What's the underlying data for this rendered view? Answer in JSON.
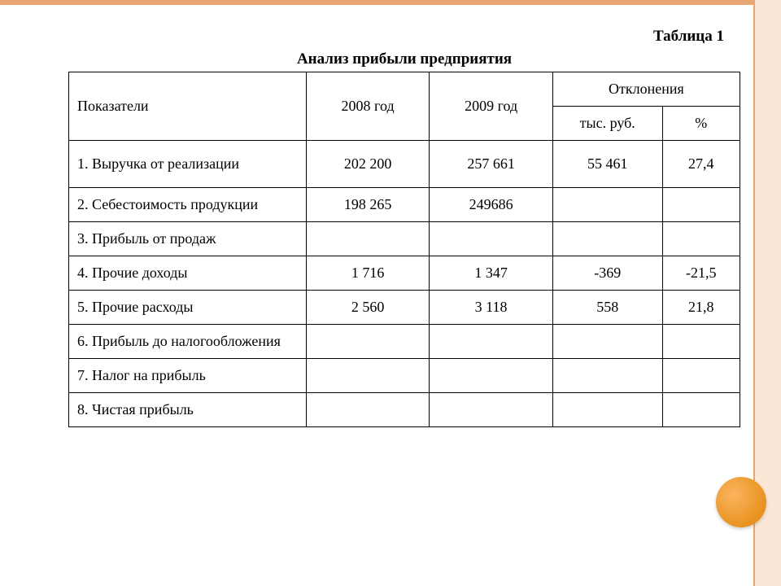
{
  "table_label": "Таблица 1",
  "title": "Анализ прибыли предприятия",
  "headers": {
    "indicators": "Показатели",
    "year2008": "2008 год",
    "year2009": "2009 год",
    "deviations": "Отклонения",
    "thous_rub": "тыс. руб.",
    "percent": "%"
  },
  "rows": [
    {
      "label": "1. Выручка от реализации",
      "y2008": "202 200",
      "y2009": "257 661",
      "dev": "55 461",
      "pct": "27,4"
    },
    {
      "label": "2. Себестоимость продукции",
      "y2008": "198 265",
      "y2009": "249686",
      "dev": "",
      "pct": ""
    },
    {
      "label": "3. Прибыль от продаж",
      "y2008": "",
      "y2009": "",
      "dev": "",
      "pct": ""
    },
    {
      "label": "4. Прочие доходы",
      "y2008": "1 716",
      "y2009": "1 347",
      "dev": "-369",
      "pct": "-21,5"
    },
    {
      "label": "5. Прочие расходы",
      "y2008": "2 560",
      "y2009": "3 118",
      "dev": "558",
      "pct": "21,8"
    },
    {
      "label": "6. Прибыль до налогообложения",
      "y2008": "",
      "y2009": "",
      "dev": "",
      "pct": ""
    },
    {
      "label": "7. Налог на прибыль",
      "y2008": "",
      "y2009": "",
      "dev": "",
      "pct": ""
    },
    {
      "label": "8.  Чистая прибыль",
      "y2008": "",
      "y2009": "",
      "dev": "",
      "pct": ""
    }
  ],
  "colors": {
    "frame": "#e8a572",
    "frame_fill": "#fce6d6",
    "circle": "#e8921f",
    "background": "#ffffff",
    "border": "#000000",
    "text": "#000000"
  },
  "table_style": {
    "font_family": "Times New Roman",
    "font_size_body": 18,
    "font_size_title": 19,
    "col_widths": {
      "indicator": 260,
      "year": 135,
      "deviation": 120,
      "percent": 85
    }
  }
}
